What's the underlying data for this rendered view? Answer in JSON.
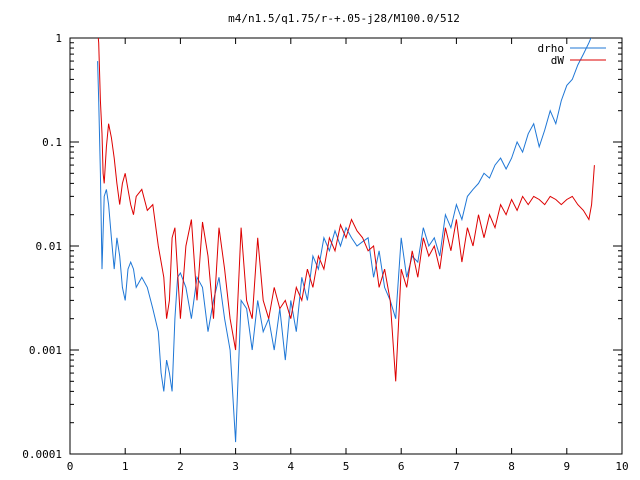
{
  "chart_data": {
    "type": "line",
    "title": "m4/n1.5/q1.75/r-+.05-j28/M100.0/512",
    "xlabel": "",
    "ylabel": "",
    "xlim": [
      0,
      10
    ],
    "ylim": [
      0.0001,
      1
    ],
    "yscale": "log",
    "grid": false,
    "legend_position": "top-right",
    "x_ticks": [
      0,
      1,
      2,
      3,
      4,
      5,
      6,
      7,
      8,
      9,
      10
    ],
    "x_tick_labels": [
      "0",
      "1",
      "2",
      "3",
      "4",
      "5",
      "6",
      "7",
      "8",
      "9",
      "10"
    ],
    "y_ticks": [
      0.0001,
      0.001,
      0.01,
      0.1,
      1
    ],
    "y_tick_labels": [
      "0.0001",
      "0.001",
      "0.01",
      "0.1",
      "1"
    ],
    "series": [
      {
        "name": "drho",
        "color": "#1f77d6",
        "x": [
          0.5,
          0.52,
          0.55,
          0.58,
          0.62,
          0.66,
          0.7,
          0.75,
          0.8,
          0.85,
          0.9,
          0.95,
          1.0,
          1.05,
          1.1,
          1.15,
          1.2,
          1.3,
          1.4,
          1.5,
          1.6,
          1.65,
          1.7,
          1.75,
          1.8,
          1.85,
          1.9,
          1.95,
          2.0,
          2.1,
          2.2,
          2.3,
          2.4,
          2.5,
          2.6,
          2.7,
          2.8,
          2.9,
          3.0,
          3.1,
          3.2,
          3.3,
          3.4,
          3.5,
          3.6,
          3.7,
          3.8,
          3.9,
          4.0,
          4.1,
          4.2,
          4.3,
          4.4,
          4.5,
          4.6,
          4.7,
          4.8,
          4.9,
          5.0,
          5.1,
          5.2,
          5.3,
          5.4,
          5.5,
          5.6,
          5.7,
          5.8,
          5.9,
          6.0,
          6.1,
          6.2,
          6.3,
          6.4,
          6.5,
          6.6,
          6.7,
          6.8,
          6.9,
          7.0,
          7.1,
          7.2,
          7.3,
          7.4,
          7.5,
          7.6,
          7.7,
          7.8,
          7.9,
          8.0,
          8.1,
          8.2,
          8.3,
          8.4,
          8.5,
          8.6,
          8.7,
          8.8,
          8.9,
          9.0,
          9.1,
          9.2,
          9.3,
          9.4,
          9.5
        ],
        "values": [
          0.6,
          0.25,
          0.05,
          0.006,
          0.03,
          0.035,
          0.025,
          0.012,
          0.006,
          0.012,
          0.008,
          0.004,
          0.003,
          0.006,
          0.007,
          0.006,
          0.004,
          0.005,
          0.004,
          0.0025,
          0.0015,
          0.0006,
          0.0004,
          0.0008,
          0.0006,
          0.0004,
          0.002,
          0.005,
          0.0055,
          0.004,
          0.002,
          0.005,
          0.004,
          0.0015,
          0.003,
          0.005,
          0.002,
          0.001,
          0.00013,
          0.003,
          0.0025,
          0.001,
          0.003,
          0.0015,
          0.002,
          0.001,
          0.0025,
          0.0008,
          0.003,
          0.0015,
          0.005,
          0.003,
          0.008,
          0.006,
          0.012,
          0.009,
          0.014,
          0.01,
          0.015,
          0.012,
          0.01,
          0.011,
          0.012,
          0.005,
          0.009,
          0.004,
          0.003,
          0.002,
          0.012,
          0.005,
          0.008,
          0.007,
          0.015,
          0.01,
          0.012,
          0.008,
          0.02,
          0.015,
          0.025,
          0.018,
          0.03,
          0.035,
          0.04,
          0.05,
          0.045,
          0.06,
          0.07,
          0.055,
          0.07,
          0.1,
          0.08,
          0.12,
          0.15,
          0.09,
          0.13,
          0.2,
          0.15,
          0.25,
          0.35,
          0.4,
          0.55,
          0.7,
          0.9,
          1.2
        ]
      },
      {
        "name": "dW",
        "color": "#dd0000",
        "x": [
          0.5,
          0.52,
          0.55,
          0.58,
          0.6,
          0.62,
          0.66,
          0.7,
          0.75,
          0.8,
          0.85,
          0.9,
          0.95,
          1.0,
          1.05,
          1.1,
          1.15,
          1.2,
          1.3,
          1.4,
          1.5,
          1.6,
          1.7,
          1.75,
          1.8,
          1.85,
          1.9,
          2.0,
          2.1,
          2.2,
          2.3,
          2.4,
          2.5,
          2.6,
          2.7,
          2.8,
          2.9,
          3.0,
          3.1,
          3.2,
          3.3,
          3.4,
          3.5,
          3.6,
          3.7,
          3.8,
          3.9,
          4.0,
          4.1,
          4.2,
          4.3,
          4.4,
          4.5,
          4.6,
          4.7,
          4.8,
          4.9,
          5.0,
          5.1,
          5.2,
          5.3,
          5.4,
          5.5,
          5.6,
          5.7,
          5.8,
          5.9,
          6.0,
          6.1,
          6.2,
          6.3,
          6.4,
          6.5,
          6.6,
          6.7,
          6.8,
          6.9,
          7.0,
          7.1,
          7.2,
          7.3,
          7.4,
          7.5,
          7.6,
          7.7,
          7.8,
          7.9,
          8.0,
          8.1,
          8.2,
          8.3,
          8.4,
          8.5,
          8.6,
          8.7,
          8.8,
          8.9,
          9.0,
          9.1,
          9.2,
          9.3,
          9.4,
          9.45,
          9.5
        ],
        "values": [
          1.2,
          0.9,
          0.25,
          0.12,
          0.05,
          0.04,
          0.09,
          0.15,
          0.11,
          0.07,
          0.04,
          0.025,
          0.04,
          0.05,
          0.035,
          0.025,
          0.02,
          0.03,
          0.035,
          0.022,
          0.025,
          0.01,
          0.005,
          0.002,
          0.003,
          0.012,
          0.015,
          0.002,
          0.01,
          0.018,
          0.003,
          0.017,
          0.008,
          0.002,
          0.015,
          0.006,
          0.002,
          0.001,
          0.015,
          0.003,
          0.002,
          0.012,
          0.003,
          0.002,
          0.004,
          0.0025,
          0.003,
          0.002,
          0.004,
          0.003,
          0.006,
          0.004,
          0.008,
          0.006,
          0.012,
          0.009,
          0.016,
          0.012,
          0.018,
          0.014,
          0.012,
          0.009,
          0.01,
          0.004,
          0.006,
          0.003,
          0.0005,
          0.006,
          0.004,
          0.009,
          0.005,
          0.012,
          0.008,
          0.01,
          0.006,
          0.015,
          0.009,
          0.018,
          0.007,
          0.015,
          0.01,
          0.02,
          0.012,
          0.02,
          0.015,
          0.025,
          0.02,
          0.028,
          0.022,
          0.03,
          0.025,
          0.03,
          0.028,
          0.025,
          0.03,
          0.028,
          0.025,
          0.028,
          0.03,
          0.025,
          0.022,
          0.018,
          0.025,
          0.06
        ]
      }
    ]
  }
}
